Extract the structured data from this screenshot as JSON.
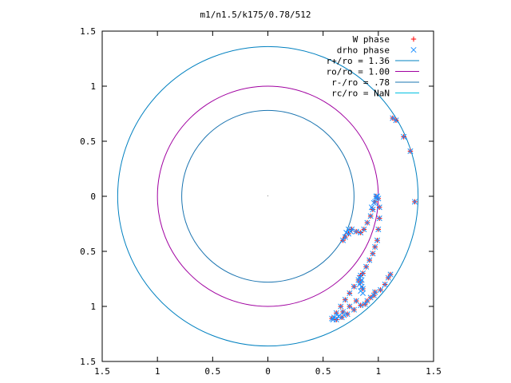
{
  "chart_data": {
    "type": "scatter",
    "title": "m1/n1.5/k175/0.78/512",
    "xlabel": "",
    "ylabel": "",
    "xlim": [
      -1.5,
      1.5
    ],
    "ylim": [
      -1.5,
      1.5
    ],
    "x_ticks": [
      -1.5,
      -1,
      -0.5,
      0,
      0.5,
      1,
      1.5
    ],
    "x_tick_labels": [
      "1.5",
      "1",
      "0.5",
      "0",
      "0.5",
      "1",
      "1.5"
    ],
    "y_ticks": [
      1.5,
      1,
      0.5,
      0,
      -0.5,
      -1,
      -1.5
    ],
    "y_tick_labels": [
      "1.5",
      "1",
      "0.5",
      "0",
      "0.5",
      "1",
      "1.5"
    ],
    "grid": false,
    "legend_position": "top-right",
    "series": [
      {
        "name": "W phase",
        "marker": "plus",
        "color": "#ff0000",
        "points": [
          [
            1.13,
            0.71
          ],
          [
            1.16,
            0.69
          ],
          [
            1.23,
            0.54
          ],
          [
            1.29,
            0.41
          ],
          [
            1.33,
            -0.05
          ],
          [
            1.0,
            -0.02
          ],
          [
            1.01,
            -0.1
          ],
          [
            1.01,
            -0.2
          ],
          [
            1.0,
            -0.3
          ],
          [
            0.99,
            -0.4
          ],
          [
            0.97,
            -0.46
          ],
          [
            0.95,
            -0.52
          ],
          [
            0.92,
            -0.58
          ],
          [
            0.89,
            -0.64
          ],
          [
            0.86,
            -0.7
          ],
          [
            0.82,
            -0.76
          ],
          [
            0.78,
            -0.82
          ],
          [
            0.74,
            -0.88
          ],
          [
            0.7,
            -0.94
          ],
          [
            0.66,
            -1.0
          ],
          [
            0.62,
            -1.06
          ],
          [
            0.58,
            -1.11
          ],
          [
            0.62,
            -1.12
          ],
          [
            0.67,
            -1.1
          ],
          [
            0.72,
            -1.07
          ],
          [
            0.78,
            -1.03
          ],
          [
            0.84,
            -0.99
          ],
          [
            0.9,
            -0.95
          ],
          [
            0.96,
            -0.9
          ],
          [
            1.02,
            -0.85
          ],
          [
            1.06,
            -0.8
          ],
          [
            1.09,
            -0.74
          ],
          [
            1.11,
            -0.71
          ],
          [
            0.97,
            -0.87
          ],
          [
            0.93,
            -0.92
          ],
          [
            0.88,
            -0.98
          ],
          [
            0.98,
            -0.0
          ],
          [
            0.97,
            -0.05
          ],
          [
            0.95,
            -0.12
          ],
          [
            0.93,
            -0.18
          ],
          [
            0.9,
            -0.24
          ],
          [
            0.87,
            -0.3
          ],
          [
            0.84,
            -0.33
          ],
          [
            0.8,
            -0.32
          ],
          [
            0.76,
            -0.3
          ],
          [
            0.73,
            -0.34
          ],
          [
            0.7,
            -0.37
          ],
          [
            0.68,
            -0.4
          ],
          [
            0.84,
            -0.72
          ],
          [
            0.84,
            -0.78
          ],
          [
            0.86,
            -0.84
          ],
          [
            0.68,
            -1.05
          ],
          [
            0.74,
            -1.0
          ],
          [
            0.8,
            -0.95
          ]
        ]
      },
      {
        "name": "drho phase",
        "marker": "cross",
        "color": "#1e90ff",
        "points": [
          [
            1.13,
            0.71
          ],
          [
            1.16,
            0.69
          ],
          [
            1.23,
            0.54
          ],
          [
            1.29,
            0.41
          ],
          [
            1.33,
            -0.05
          ],
          [
            1.0,
            -0.02
          ],
          [
            1.01,
            -0.1
          ],
          [
            1.01,
            -0.2
          ],
          [
            1.0,
            -0.3
          ],
          [
            0.99,
            -0.4
          ],
          [
            0.97,
            -0.46
          ],
          [
            0.95,
            -0.52
          ],
          [
            0.92,
            -0.58
          ],
          [
            0.89,
            -0.64
          ],
          [
            0.86,
            -0.7
          ],
          [
            0.82,
            -0.76
          ],
          [
            0.78,
            -0.82
          ],
          [
            0.74,
            -0.88
          ],
          [
            0.7,
            -0.94
          ],
          [
            0.66,
            -1.0
          ],
          [
            0.62,
            -1.06
          ],
          [
            0.58,
            -1.11
          ],
          [
            0.62,
            -1.12
          ],
          [
            0.67,
            -1.1
          ],
          [
            0.72,
            -1.07
          ],
          [
            0.78,
            -1.03
          ],
          [
            0.84,
            -0.99
          ],
          [
            0.9,
            -0.95
          ],
          [
            0.96,
            -0.9
          ],
          [
            1.02,
            -0.85
          ],
          [
            1.06,
            -0.8
          ],
          [
            1.09,
            -0.74
          ],
          [
            1.11,
            -0.71
          ],
          [
            0.97,
            -0.87
          ],
          [
            0.93,
            -0.92
          ],
          [
            0.88,
            -0.98
          ],
          [
            0.98,
            -0.0
          ],
          [
            0.97,
            -0.05
          ],
          [
            0.95,
            -0.12
          ],
          [
            0.93,
            -0.18
          ],
          [
            0.9,
            -0.24
          ],
          [
            0.87,
            -0.3
          ],
          [
            0.84,
            -0.33
          ],
          [
            0.8,
            -0.32
          ],
          [
            0.76,
            -0.3
          ],
          [
            0.73,
            -0.34
          ],
          [
            0.7,
            -0.37
          ],
          [
            0.68,
            -0.4
          ],
          [
            0.84,
            -0.72
          ],
          [
            0.84,
            -0.78
          ],
          [
            0.86,
            -0.84
          ],
          [
            0.68,
            -1.05
          ],
          [
            0.74,
            -1.0
          ],
          [
            0.8,
            -0.95
          ],
          [
            0.83,
            -0.74
          ],
          [
            0.85,
            -0.76
          ],
          [
            0.83,
            -0.8
          ],
          [
            0.85,
            -0.82
          ],
          [
            0.84,
            -0.86
          ],
          [
            0.86,
            -0.88
          ],
          [
            0.73,
            -0.3
          ],
          [
            0.75,
            -0.32
          ],
          [
            0.71,
            -0.33
          ],
          [
            0.99,
            0.0
          ],
          [
            0.98,
            -0.02
          ],
          [
            0.96,
            -0.06
          ],
          [
            0.94,
            -0.1
          ],
          [
            0.59,
            -1.12
          ],
          [
            0.6,
            -1.1
          ],
          [
            0.64,
            -1.09
          ],
          [
            0.69,
            -1.08
          ]
        ]
      }
    ],
    "circles": [
      {
        "name": "r+/ro = 1.36",
        "radius": 1.36,
        "color": "#0080c0"
      },
      {
        "name": "ro/ro = 1.00",
        "radius": 1.0,
        "color": "#a000a0"
      },
      {
        "name": "r-/ro = .78",
        "radius": 0.78,
        "color": "#1a74b0"
      },
      {
        "name": "rc/ro = NaN",
        "radius": null,
        "color": "#00c0e0"
      }
    ]
  }
}
